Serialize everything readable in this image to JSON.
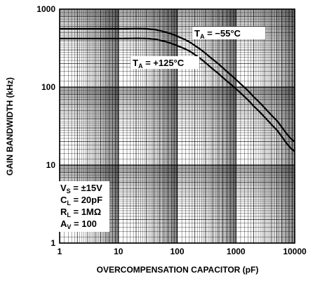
{
  "chart_data": {
    "type": "line",
    "xlabel": "OVERCOMPENSATION CAPACITOR (pF)",
    "ylabel": "GAIN BANDWIDTH (kHz)",
    "x_scale": "log",
    "y_scale": "log",
    "xlim": [
      1,
      10000
    ],
    "ylim": [
      1,
      1000
    ],
    "x_ticks": [
      "1",
      "10",
      "100",
      "1000",
      "10000"
    ],
    "y_ticks": [
      "1",
      "10",
      "100",
      "1000"
    ],
    "grid": true,
    "series": [
      {
        "annotation": {
          "prefix": "T",
          "sub": "A",
          "rest": " = −55°C"
        },
        "x": [
          1,
          10,
          30,
          50,
          100,
          200,
          500,
          1000,
          2000,
          5000,
          10000
        ],
        "y": [
          560,
          560,
          560,
          530,
          450,
          340,
          200,
          125,
          75,
          37,
          20
        ]
      },
      {
        "annotation": {
          "prefix": "T",
          "sub": "A",
          "rest": " = +125°C"
        },
        "x": [
          1,
          10,
          30,
          50,
          100,
          200,
          500,
          1000,
          2000,
          5000,
          10000
        ],
        "y": [
          420,
          420,
          420,
          400,
          340,
          260,
          150,
          95,
          57,
          28,
          15
        ]
      }
    ],
    "conditions": [
      {
        "prefix": "V",
        "sub": "S",
        "rest": " = ±15V"
      },
      {
        "prefix": "C",
        "sub": "L",
        "rest": " = 20pF"
      },
      {
        "prefix": "R",
        "sub": "L",
        "rest": " = 1MΩ"
      },
      {
        "prefix": "A",
        "sub": "V",
        "rest": " = 100"
      }
    ],
    "colors": {
      "line": "#000000",
      "grid": "#000000",
      "background": "#ffffff"
    }
  }
}
